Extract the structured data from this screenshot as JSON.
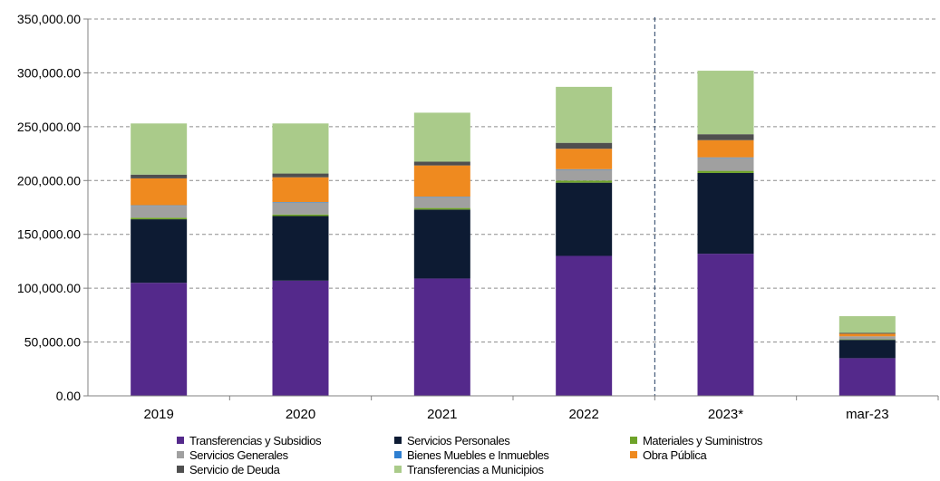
{
  "chart_data": {
    "type": "bar",
    "stacked": true,
    "categories": [
      "2019",
      "2020",
      "2021",
      "2022",
      "2023*",
      "mar-23"
    ],
    "ylim": [
      0,
      350000
    ],
    "yticks": [
      0,
      50000,
      100000,
      150000,
      200000,
      250000,
      300000,
      350000
    ],
    "ytick_labels": [
      "0.00",
      "50,000.00",
      "100,000.00",
      "150,000.00",
      "200,000.00",
      "250,000.00",
      "300,000.00",
      "350,000.00"
    ],
    "grid": "horizontal dashed",
    "divider_after_category": "2022",
    "legend_position": "bottom",
    "series": [
      {
        "name": "Transferencias y Subsidios",
        "color": "#54298b",
        "values": [
          105000,
          107000,
          109000,
          130000,
          132000,
          35000
        ]
      },
      {
        "name": "Servicios Personales",
        "color": "#0d1b33",
        "values": [
          59000,
          60000,
          64000,
          68000,
          75000,
          17000
        ]
      },
      {
        "name": "Materiales y Suministros",
        "color": "#6ea329",
        "values": [
          1500,
          1500,
          1500,
          2000,
          2000,
          500
        ]
      },
      {
        "name": "Servicios Generales",
        "color": "#a0a0a0",
        "values": [
          11000,
          11000,
          10000,
          10000,
          12000,
          2500
        ]
      },
      {
        "name": "Bienes Muebles e Inmuebles",
        "color": "#2e7fd1",
        "values": [
          500,
          500,
          500,
          500,
          500,
          200
        ]
      },
      {
        "name": "Obra Pública",
        "color": "#ef8a1f",
        "values": [
          25000,
          23000,
          29000,
          19000,
          16000,
          2500
        ]
      },
      {
        "name": "Servicio de Deuda",
        "color": "#4f4f4f",
        "values": [
          3500,
          3500,
          3500,
          5500,
          5500,
          800
        ]
      },
      {
        "name": "Transferencias a Municipios",
        "color": "#aacb8a",
        "values": [
          47500,
          46500,
          45500,
          52000,
          59000,
          15500
        ]
      }
    ]
  }
}
